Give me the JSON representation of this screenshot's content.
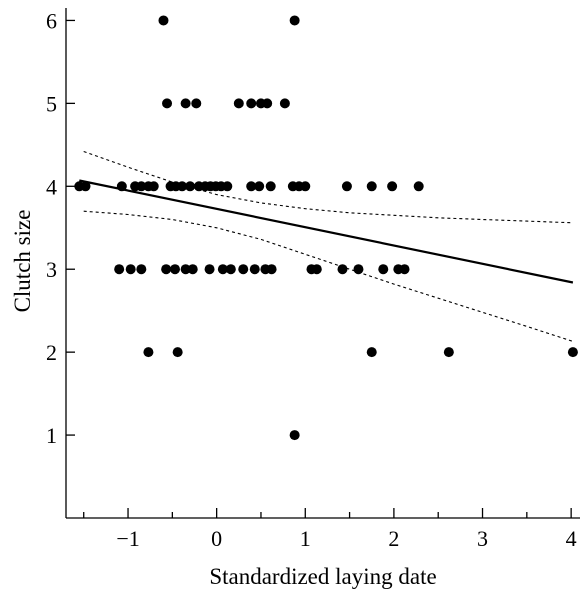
{
  "chart_data": {
    "type": "scatter",
    "title": "",
    "xlabel": "Standardized laying date",
    "ylabel": "Clutch size",
    "xlim": [
      -1.7,
      4.1
    ],
    "ylim": [
      0,
      6.15
    ],
    "x_ticks": [
      -1,
      0,
      1,
      2,
      3,
      4
    ],
    "x_tick_labels": [
      "−1",
      "0",
      "1",
      "2",
      "3",
      "4"
    ],
    "y_ticks": [
      1,
      2,
      3,
      4,
      5,
      6
    ],
    "y_tick_labels": [
      "1",
      "2",
      "3",
      "4",
      "5",
      "6"
    ],
    "grid": false,
    "legend": "none",
    "colors": {
      "points": "#000000",
      "lines": "#000000"
    },
    "points": [
      {
        "x": -0.6,
        "y": 6
      },
      {
        "x": 0.88,
        "y": 6
      },
      {
        "x": -0.56,
        "y": 5
      },
      {
        "x": -0.35,
        "y": 5
      },
      {
        "x": -0.23,
        "y": 5
      },
      {
        "x": 0.25,
        "y": 5
      },
      {
        "x": 0.39,
        "y": 5
      },
      {
        "x": 0.5,
        "y": 5
      },
      {
        "x": 0.57,
        "y": 5
      },
      {
        "x": 0.77,
        "y": 5
      },
      {
        "x": -1.55,
        "y": 4
      },
      {
        "x": -1.48,
        "y": 4
      },
      {
        "x": -1.07,
        "y": 4
      },
      {
        "x": -0.92,
        "y": 4
      },
      {
        "x": -0.85,
        "y": 4
      },
      {
        "x": -0.77,
        "y": 4
      },
      {
        "x": -0.71,
        "y": 4
      },
      {
        "x": -0.52,
        "y": 4
      },
      {
        "x": -0.46,
        "y": 4
      },
      {
        "x": -0.39,
        "y": 4
      },
      {
        "x": -0.3,
        "y": 4
      },
      {
        "x": -0.2,
        "y": 4
      },
      {
        "x": -0.13,
        "y": 4
      },
      {
        "x": -0.07,
        "y": 4
      },
      {
        "x": -0.01,
        "y": 4
      },
      {
        "x": 0.05,
        "y": 4
      },
      {
        "x": 0.12,
        "y": 4
      },
      {
        "x": 0.39,
        "y": 4
      },
      {
        "x": 0.48,
        "y": 4
      },
      {
        "x": 0.61,
        "y": 4
      },
      {
        "x": 0.86,
        "y": 4
      },
      {
        "x": 0.93,
        "y": 4
      },
      {
        "x": 1.0,
        "y": 4
      },
      {
        "x": 1.47,
        "y": 4
      },
      {
        "x": 1.75,
        "y": 4
      },
      {
        "x": 1.98,
        "y": 4
      },
      {
        "x": 2.28,
        "y": 4
      },
      {
        "x": -1.1,
        "y": 3
      },
      {
        "x": -0.97,
        "y": 3
      },
      {
        "x": -0.85,
        "y": 3
      },
      {
        "x": -0.57,
        "y": 3
      },
      {
        "x": -0.47,
        "y": 3
      },
      {
        "x": -0.35,
        "y": 3
      },
      {
        "x": -0.27,
        "y": 3
      },
      {
        "x": -0.08,
        "y": 3
      },
      {
        "x": 0.07,
        "y": 3
      },
      {
        "x": 0.16,
        "y": 3
      },
      {
        "x": 0.3,
        "y": 3
      },
      {
        "x": 0.43,
        "y": 3
      },
      {
        "x": 0.55,
        "y": 3
      },
      {
        "x": 0.62,
        "y": 3
      },
      {
        "x": 1.07,
        "y": 3
      },
      {
        "x": 1.13,
        "y": 3
      },
      {
        "x": 1.42,
        "y": 3
      },
      {
        "x": 1.6,
        "y": 3
      },
      {
        "x": 1.88,
        "y": 3
      },
      {
        "x": 2.05,
        "y": 3
      },
      {
        "x": 2.12,
        "y": 3
      },
      {
        "x": -0.77,
        "y": 2
      },
      {
        "x": -0.44,
        "y": 2
      },
      {
        "x": 1.75,
        "y": 2
      },
      {
        "x": 2.62,
        "y": 2
      },
      {
        "x": 4.02,
        "y": 2
      },
      {
        "x": 0.88,
        "y": 1
      }
    ],
    "regression_line": {
      "x": [
        -1.55,
        4.02
      ],
      "y": [
        4.07,
        2.84
      ]
    },
    "confidence_band": {
      "upper": {
        "x": [
          -1.5,
          -1.0,
          -0.5,
          0.0,
          0.5,
          1.0,
          1.5,
          2.0,
          2.5,
          3.0,
          3.5,
          4.02
        ],
        "y": [
          4.42,
          4.23,
          4.05,
          3.9,
          3.8,
          3.73,
          3.68,
          3.65,
          3.62,
          3.6,
          3.58,
          3.56
        ]
      },
      "lower": {
        "x": [
          -1.5,
          -1.0,
          -0.5,
          0.0,
          0.5,
          1.0,
          1.5,
          2.0,
          2.5,
          3.0,
          3.5,
          4.02
        ],
        "y": [
          3.7,
          3.66,
          3.6,
          3.5,
          3.36,
          3.18,
          3.0,
          2.82,
          2.65,
          2.48,
          2.31,
          2.13
        ]
      }
    }
  }
}
